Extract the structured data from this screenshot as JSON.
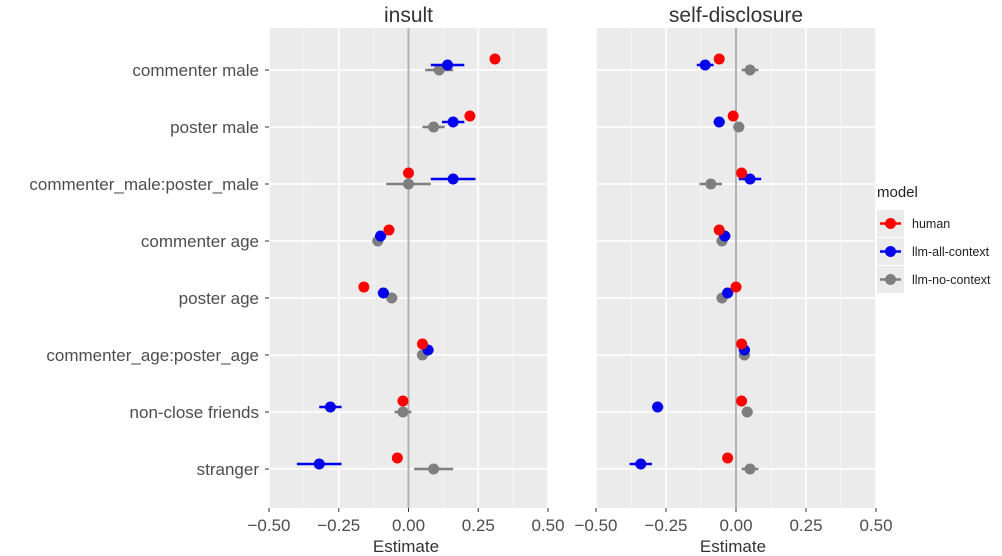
{
  "chart_data": {
    "type": "scatter",
    "subtype": "point-range (dot-and-whisker) faceted plot",
    "panels": [
      "insult",
      "self-disclosure"
    ],
    "categories": [
      "commenter male",
      "poster male",
      "commenter_male:poster_male",
      "commenter age",
      "poster age",
      "commenter_age:poster_age",
      "non-close friends",
      "stranger"
    ],
    "xlabel": "Estimate",
    "ylabel": "",
    "xlim": [
      -0.5,
      0.5
    ],
    "x_ticks": [
      -0.5,
      -0.25,
      0.0,
      0.25,
      0.5
    ],
    "x_tick_labels": [
      "−0.50",
      "−0.25",
      "0.00",
      "0.25",
      "0.50"
    ],
    "reference_line": 0,
    "grid": true,
    "legend": {
      "title": "model",
      "placement": "right",
      "entries": [
        "human",
        "llm-all-context",
        "llm-no-context"
      ]
    },
    "colors": {
      "human": "#ff0000",
      "llm-all-context": "#0000ee",
      "llm-no-context": "#7f7f7f",
      "panel_background": "#ebebeb",
      "grid": "#ffffff",
      "reference_line": "#b3b3b3"
    },
    "series": [
      {
        "name": "human",
        "panels": {
          "insult": [
            {
              "est": 0.31,
              "lo": 0.31,
              "hi": 0.31
            },
            {
              "est": 0.22,
              "lo": 0.22,
              "hi": 0.22
            },
            {
              "est": 0.0,
              "lo": 0.0,
              "hi": 0.0
            },
            {
              "est": -0.07,
              "lo": -0.07,
              "hi": -0.07
            },
            {
              "est": -0.16,
              "lo": -0.16,
              "hi": -0.16
            },
            {
              "est": 0.05,
              "lo": 0.05,
              "hi": 0.05
            },
            {
              "est": -0.02,
              "lo": -0.02,
              "hi": -0.02
            },
            {
              "est": -0.04,
              "lo": -0.04,
              "hi": -0.04
            }
          ],
          "self-disclosure": [
            {
              "est": -0.06,
              "lo": -0.06,
              "hi": -0.06
            },
            {
              "est": -0.01,
              "lo": -0.01,
              "hi": -0.01
            },
            {
              "est": 0.02,
              "lo": 0.02,
              "hi": 0.02
            },
            {
              "est": -0.06,
              "lo": -0.06,
              "hi": -0.06
            },
            {
              "est": 0.0,
              "lo": 0.0,
              "hi": 0.0
            },
            {
              "est": 0.02,
              "lo": 0.02,
              "hi": 0.02
            },
            {
              "est": 0.02,
              "lo": 0.02,
              "hi": 0.02
            },
            {
              "est": -0.03,
              "lo": -0.03,
              "hi": -0.03
            }
          ]
        }
      },
      {
        "name": "llm-all-context",
        "panels": {
          "insult": [
            {
              "est": 0.14,
              "lo": 0.08,
              "hi": 0.2
            },
            {
              "est": 0.16,
              "lo": 0.12,
              "hi": 0.2
            },
            {
              "est": 0.16,
              "lo": 0.08,
              "hi": 0.24
            },
            {
              "est": -0.1,
              "lo": -0.12,
              "hi": -0.08
            },
            {
              "est": -0.09,
              "lo": -0.11,
              "hi": -0.07
            },
            {
              "est": 0.07,
              "lo": 0.05,
              "hi": 0.09
            },
            {
              "est": -0.28,
              "lo": -0.32,
              "hi": -0.24
            },
            {
              "est": -0.32,
              "lo": -0.4,
              "hi": -0.24
            }
          ],
          "self-disclosure": [
            {
              "est": -0.11,
              "lo": -0.14,
              "hi": -0.08
            },
            {
              "est": -0.06,
              "lo": -0.08,
              "hi": -0.04
            },
            {
              "est": 0.05,
              "lo": 0.01,
              "hi": 0.09
            },
            {
              "est": -0.04,
              "lo": -0.06,
              "hi": -0.02
            },
            {
              "est": -0.03,
              "lo": -0.05,
              "hi": -0.01
            },
            {
              "est": 0.03,
              "lo": 0.01,
              "hi": 0.05
            },
            {
              "est": -0.28,
              "lo": -0.3,
              "hi": -0.26
            },
            {
              "est": -0.34,
              "lo": -0.38,
              "hi": -0.3
            }
          ]
        }
      },
      {
        "name": "llm-no-context",
        "panels": {
          "insult": [
            {
              "est": 0.11,
              "lo": 0.06,
              "hi": 0.16
            },
            {
              "est": 0.09,
              "lo": 0.05,
              "hi": 0.13
            },
            {
              "est": 0.0,
              "lo": -0.08,
              "hi": 0.08
            },
            {
              "est": -0.11,
              "lo": -0.13,
              "hi": -0.09
            },
            {
              "est": -0.06,
              "lo": -0.08,
              "hi": -0.04
            },
            {
              "est": 0.05,
              "lo": 0.03,
              "hi": 0.07
            },
            {
              "est": -0.02,
              "lo": -0.05,
              "hi": 0.01
            },
            {
              "est": 0.09,
              "lo": 0.02,
              "hi": 0.16
            }
          ],
          "self-disclosure": [
            {
              "est": 0.05,
              "lo": 0.02,
              "hi": 0.08
            },
            {
              "est": 0.01,
              "lo": -0.01,
              "hi": 0.03
            },
            {
              "est": -0.09,
              "lo": -0.13,
              "hi": -0.05
            },
            {
              "est": -0.05,
              "lo": -0.07,
              "hi": -0.03
            },
            {
              "est": -0.05,
              "lo": -0.07,
              "hi": -0.03
            },
            {
              "est": 0.03,
              "lo": 0.01,
              "hi": 0.05
            },
            {
              "est": 0.04,
              "lo": 0.02,
              "hi": 0.06
            },
            {
              "est": 0.05,
              "lo": 0.02,
              "hi": 0.08
            }
          ]
        }
      }
    ]
  }
}
